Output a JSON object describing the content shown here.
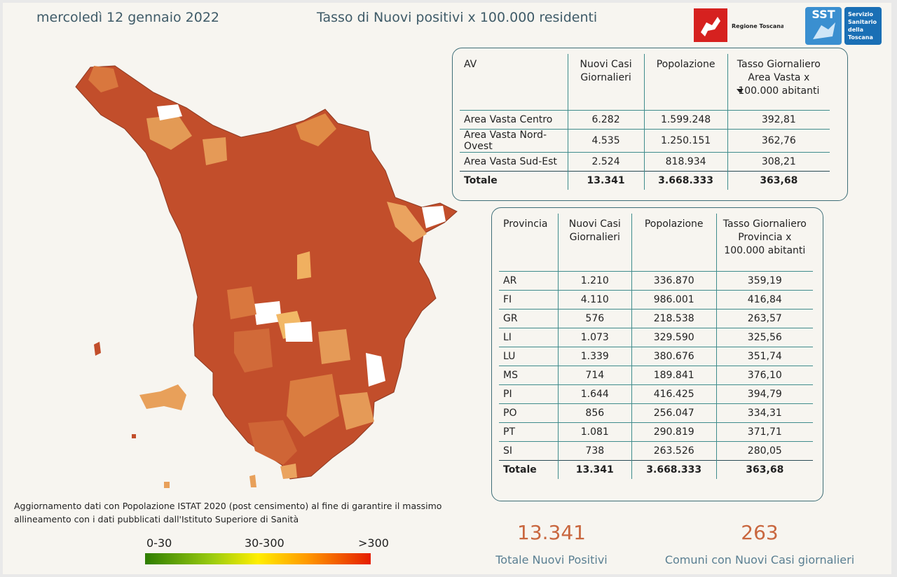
{
  "header": {
    "date": "mercoledì 12 gennaio 2022",
    "title": "Tasso di Nuovi positivi x 100.000 residenti",
    "region_logo": "Regione Toscana",
    "sst_logo": {
      "abbr": "SST",
      "lines": [
        "Servizio",
        "Sanitario",
        "della",
        "Toscana"
      ]
    }
  },
  "table_av": {
    "columns": [
      "AV",
      "Nuovi Casi Giornalieri",
      "Popolazione",
      "Tasso Giornaliero Area Vasta x 100.000 abitanti"
    ],
    "rows": [
      [
        "Area Vasta Centro",
        "6.282",
        "1.599.248",
        "392,81"
      ],
      [
        "Area Vasta Nord-Ovest",
        "4.535",
        "1.250.151",
        "362,76"
      ],
      [
        "Area Vasta Sud-Est",
        "2.524",
        "818.934",
        "308,21"
      ]
    ],
    "total": [
      "Totale",
      "13.341",
      "3.668.333",
      "363,68"
    ]
  },
  "table_prov": {
    "columns": [
      "Provincia",
      "Nuovi Casi Giornalieri",
      "Popolazione",
      "Tasso Giornaliero Provincia x 100.000 abitanti"
    ],
    "rows": [
      [
        "AR",
        "1.210",
        "336.870",
        "359,19"
      ],
      [
        "FI",
        "4.110",
        "986.001",
        "416,84"
      ],
      [
        "GR",
        "576",
        "218.538",
        "263,57"
      ],
      [
        "LI",
        "1.073",
        "329.590",
        "325,56"
      ],
      [
        "LU",
        "1.339",
        "380.676",
        "351,74"
      ],
      [
        "MS",
        "714",
        "189.841",
        "376,10"
      ],
      [
        "PI",
        "1.644",
        "416.425",
        "394,79"
      ],
      [
        "PO",
        "856",
        "256.047",
        "334,31"
      ],
      [
        "PT",
        "1.081",
        "290.819",
        "371,71"
      ],
      [
        "SI",
        "738",
        "263.526",
        "280,05"
      ]
    ],
    "total": [
      "Totale",
      "13.341",
      "3.668.333",
      "363,68"
    ]
  },
  "note": "Aggiornamento dati con Popolazione ISTAT 2020 (post censimento) al fine di garantire il massimo allineamento con i dati pubblicati dall'Istituto Superiore di Sanità",
  "legend": [
    "0-30",
    "30-300",
    ">300"
  ],
  "kpis": [
    {
      "value": "13.341",
      "label": "Totale Nuovi Positivi"
    },
    {
      "value": "263",
      "label": "Comuni con Nuovi Casi giornalieri"
    }
  ]
}
